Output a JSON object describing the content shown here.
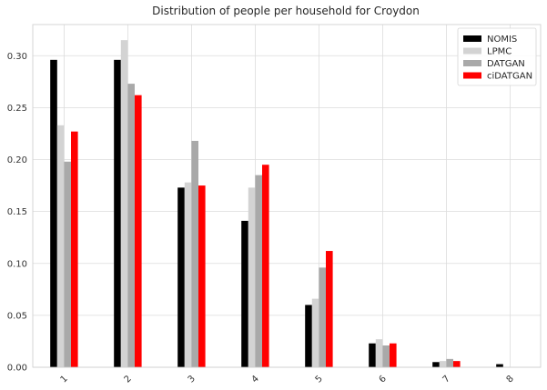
{
  "chart_data": {
    "type": "bar",
    "title": "Distribution of people per household for Croydon",
    "xlabel": "",
    "ylabel": "",
    "categories": [
      "1",
      "2",
      "3",
      "4",
      "5",
      "6",
      "7",
      "8"
    ],
    "ylim": [
      0,
      0.33
    ],
    "yticks": [
      "0.00",
      "0.05",
      "0.10",
      "0.15",
      "0.20",
      "0.25",
      "0.30"
    ],
    "grid": true,
    "legend_position": "top-right",
    "series": [
      {
        "name": "NOMIS",
        "color": "#000000",
        "values": [
          0.296,
          0.296,
          0.173,
          0.141,
          0.06,
          0.023,
          0.005,
          0.003
        ]
      },
      {
        "name": "LPMC",
        "color": "#d3d3d3",
        "values": [
          0.233,
          0.315,
          0.178,
          0.173,
          0.066,
          0.027,
          0.006,
          0.0
        ]
      },
      {
        "name": "DATGAN",
        "color": "#a9a9a9",
        "values": [
          0.198,
          0.273,
          0.218,
          0.185,
          0.096,
          0.021,
          0.008,
          0.0
        ]
      },
      {
        "name": "ciDATGAN",
        "color": "#ff0000",
        "values": [
          0.227,
          0.262,
          0.175,
          0.195,
          0.112,
          0.023,
          0.006,
          0.0
        ]
      }
    ]
  }
}
